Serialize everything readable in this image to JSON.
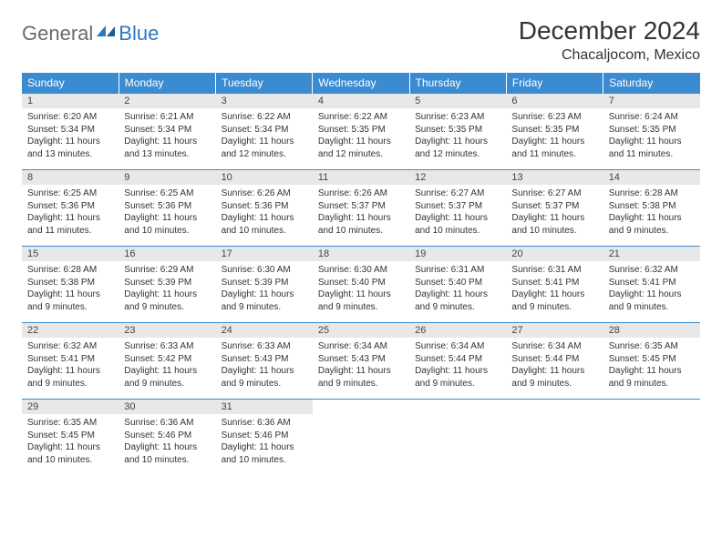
{
  "logo": {
    "text1": "General",
    "text2": "Blue"
  },
  "title": "December 2024",
  "location": "Chacaljocom, Mexico",
  "colors": {
    "header_bg": "#3b8bd0",
    "header_fg": "#ffffff",
    "daynum_bg": "#e8e8e8",
    "grid_line": "#3b8bd0",
    "logo_gray": "#6b6b6b",
    "logo_blue": "#2b78c2"
  },
  "weekdays": [
    "Sunday",
    "Monday",
    "Tuesday",
    "Wednesday",
    "Thursday",
    "Friday",
    "Saturday"
  ],
  "weeks": [
    [
      {
        "n": "1",
        "sunrise": "6:20 AM",
        "sunset": "5:34 PM",
        "daylight": "11 hours and 13 minutes."
      },
      {
        "n": "2",
        "sunrise": "6:21 AM",
        "sunset": "5:34 PM",
        "daylight": "11 hours and 13 minutes."
      },
      {
        "n": "3",
        "sunrise": "6:22 AM",
        "sunset": "5:34 PM",
        "daylight": "11 hours and 12 minutes."
      },
      {
        "n": "4",
        "sunrise": "6:22 AM",
        "sunset": "5:35 PM",
        "daylight": "11 hours and 12 minutes."
      },
      {
        "n": "5",
        "sunrise": "6:23 AM",
        "sunset": "5:35 PM",
        "daylight": "11 hours and 12 minutes."
      },
      {
        "n": "6",
        "sunrise": "6:23 AM",
        "sunset": "5:35 PM",
        "daylight": "11 hours and 11 minutes."
      },
      {
        "n": "7",
        "sunrise": "6:24 AM",
        "sunset": "5:35 PM",
        "daylight": "11 hours and 11 minutes."
      }
    ],
    [
      {
        "n": "8",
        "sunrise": "6:25 AM",
        "sunset": "5:36 PM",
        "daylight": "11 hours and 11 minutes."
      },
      {
        "n": "9",
        "sunrise": "6:25 AM",
        "sunset": "5:36 PM",
        "daylight": "11 hours and 10 minutes."
      },
      {
        "n": "10",
        "sunrise": "6:26 AM",
        "sunset": "5:36 PM",
        "daylight": "11 hours and 10 minutes."
      },
      {
        "n": "11",
        "sunrise": "6:26 AM",
        "sunset": "5:37 PM",
        "daylight": "11 hours and 10 minutes."
      },
      {
        "n": "12",
        "sunrise": "6:27 AM",
        "sunset": "5:37 PM",
        "daylight": "11 hours and 10 minutes."
      },
      {
        "n": "13",
        "sunrise": "6:27 AM",
        "sunset": "5:37 PM",
        "daylight": "11 hours and 10 minutes."
      },
      {
        "n": "14",
        "sunrise": "6:28 AM",
        "sunset": "5:38 PM",
        "daylight": "11 hours and 9 minutes."
      }
    ],
    [
      {
        "n": "15",
        "sunrise": "6:28 AM",
        "sunset": "5:38 PM",
        "daylight": "11 hours and 9 minutes."
      },
      {
        "n": "16",
        "sunrise": "6:29 AM",
        "sunset": "5:39 PM",
        "daylight": "11 hours and 9 minutes."
      },
      {
        "n": "17",
        "sunrise": "6:30 AM",
        "sunset": "5:39 PM",
        "daylight": "11 hours and 9 minutes."
      },
      {
        "n": "18",
        "sunrise": "6:30 AM",
        "sunset": "5:40 PM",
        "daylight": "11 hours and 9 minutes."
      },
      {
        "n": "19",
        "sunrise": "6:31 AM",
        "sunset": "5:40 PM",
        "daylight": "11 hours and 9 minutes."
      },
      {
        "n": "20",
        "sunrise": "6:31 AM",
        "sunset": "5:41 PM",
        "daylight": "11 hours and 9 minutes."
      },
      {
        "n": "21",
        "sunrise": "6:32 AM",
        "sunset": "5:41 PM",
        "daylight": "11 hours and 9 minutes."
      }
    ],
    [
      {
        "n": "22",
        "sunrise": "6:32 AM",
        "sunset": "5:41 PM",
        "daylight": "11 hours and 9 minutes."
      },
      {
        "n": "23",
        "sunrise": "6:33 AM",
        "sunset": "5:42 PM",
        "daylight": "11 hours and 9 minutes."
      },
      {
        "n": "24",
        "sunrise": "6:33 AM",
        "sunset": "5:43 PM",
        "daylight": "11 hours and 9 minutes."
      },
      {
        "n": "25",
        "sunrise": "6:34 AM",
        "sunset": "5:43 PM",
        "daylight": "11 hours and 9 minutes."
      },
      {
        "n": "26",
        "sunrise": "6:34 AM",
        "sunset": "5:44 PM",
        "daylight": "11 hours and 9 minutes."
      },
      {
        "n": "27",
        "sunrise": "6:34 AM",
        "sunset": "5:44 PM",
        "daylight": "11 hours and 9 minutes."
      },
      {
        "n": "28",
        "sunrise": "6:35 AM",
        "sunset": "5:45 PM",
        "daylight": "11 hours and 9 minutes."
      }
    ],
    [
      {
        "n": "29",
        "sunrise": "6:35 AM",
        "sunset": "5:45 PM",
        "daylight": "11 hours and 10 minutes."
      },
      {
        "n": "30",
        "sunrise": "6:36 AM",
        "sunset": "5:46 PM",
        "daylight": "11 hours and 10 minutes."
      },
      {
        "n": "31",
        "sunrise": "6:36 AM",
        "sunset": "5:46 PM",
        "daylight": "11 hours and 10 minutes."
      },
      null,
      null,
      null,
      null
    ]
  ],
  "labels": {
    "sunrise": "Sunrise:",
    "sunset": "Sunset:",
    "daylight": "Daylight:"
  }
}
